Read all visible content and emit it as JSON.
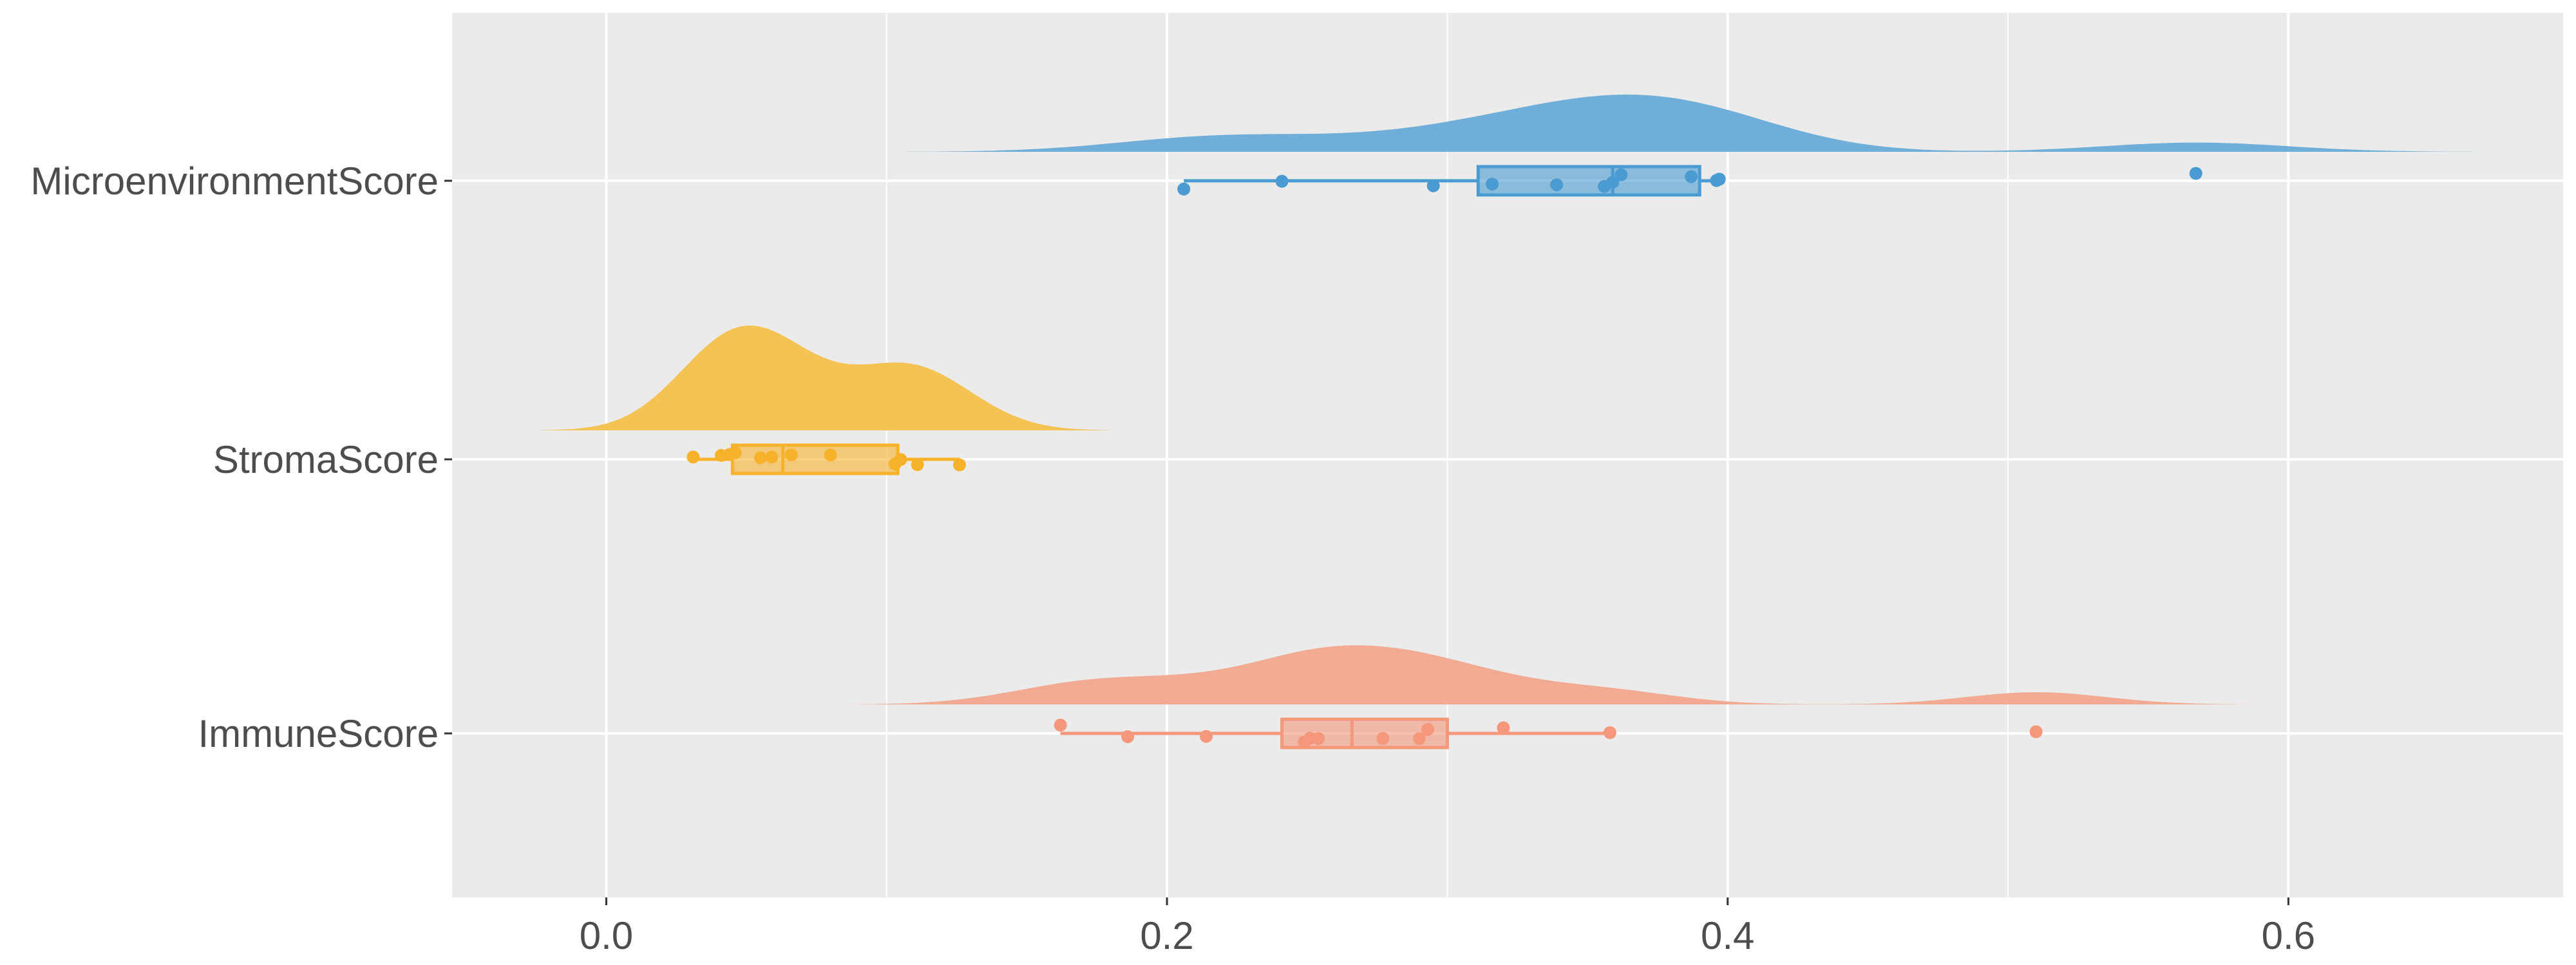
{
  "chart_data": {
    "type": "raincloud",
    "title": "",
    "xlabel": "",
    "ylabel": "",
    "xlim": [
      -0.055,
      0.698
    ],
    "x_ticks": [
      0.0,
      0.2,
      0.4,
      0.6
    ],
    "x_tick_labels": [
      "0.0",
      "0.2",
      "0.4",
      "0.6"
    ],
    "grid": true,
    "legend": "none",
    "categories": [
      "MicroenvironmentScore",
      "StromaScore",
      "ImmuneScore"
    ],
    "series": [
      {
        "name": "MicroenvironmentScore",
        "color": "#4A9BD1",
        "density_color": "#6FAED8",
        "bandwidth": 0.033,
        "points": [
          0.206,
          0.241,
          0.295,
          0.316,
          0.339,
          0.356,
          0.359,
          0.362,
          0.387,
          0.396,
          0.397,
          0.567
        ],
        "box": {
          "whisker_low": 0.206,
          "q1": 0.311,
          "median": 0.359,
          "q3": 0.39,
          "whisker_high": 0.397
        }
      },
      {
        "name": "StromaScore",
        "color": "#F7B22B",
        "density_color": "#F5C254",
        "bandwidth": 0.018,
        "points": [
          0.031,
          0.041,
          0.044,
          0.046,
          0.055,
          0.059,
          0.066,
          0.08,
          0.103,
          0.105,
          0.111,
          0.126
        ],
        "box": {
          "whisker_low": 0.031,
          "q1": 0.045,
          "median": 0.063,
          "q3": 0.104,
          "whisker_high": 0.126
        }
      },
      {
        "name": "ImmuneScore",
        "color": "#F4977A",
        "density_color": "#F2AA92",
        "bandwidth": 0.025,
        "points": [
          0.162,
          0.186,
          0.214,
          0.249,
          0.251,
          0.254,
          0.277,
          0.29,
          0.293,
          0.32,
          0.358,
          0.51
        ],
        "box": {
          "whisker_low": 0.162,
          "q1": 0.241,
          "median": 0.266,
          "q3": 0.3,
          "whisker_high": 0.358
        }
      }
    ]
  }
}
